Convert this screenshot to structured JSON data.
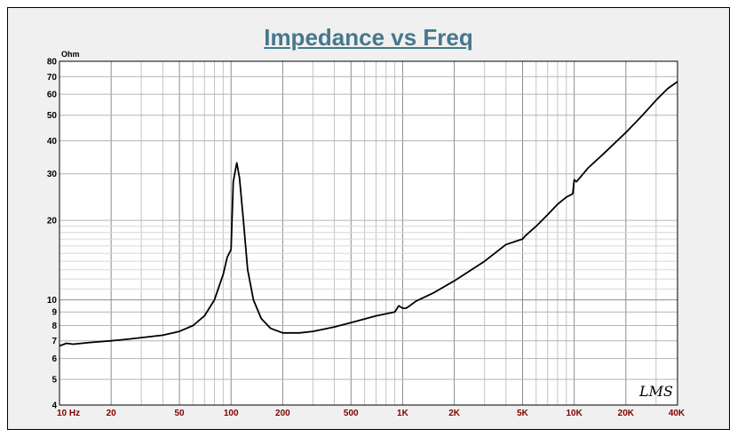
{
  "chart_data": {
    "type": "line",
    "title": "Impedance vs Freq",
    "xlabel": "",
    "ylabel": "",
    "y_unit": "Ohm",
    "x_scale": "log",
    "y_scale": "log",
    "xlim": [
      10,
      40000
    ],
    "ylim": [
      4,
      80
    ],
    "grid": true,
    "x_tick_labels": [
      {
        "value": 10,
        "label": "10  Hz"
      },
      {
        "value": 20,
        "label": "20"
      },
      {
        "value": 50,
        "label": "50"
      },
      {
        "value": 100,
        "label": "100"
      },
      {
        "value": 200,
        "label": "200"
      },
      {
        "value": 500,
        "label": "500"
      },
      {
        "value": 1000,
        "label": "1K"
      },
      {
        "value": 2000,
        "label": "2K"
      },
      {
        "value": 5000,
        "label": "5K"
      },
      {
        "value": 10000,
        "label": "10K"
      },
      {
        "value": 20000,
        "label": "20K"
      },
      {
        "value": 40000,
        "label": "40K"
      }
    ],
    "y_tick_labels": [
      {
        "value": 4,
        "label": "4"
      },
      {
        "value": 5,
        "label": "5"
      },
      {
        "value": 6,
        "label": "6"
      },
      {
        "value": 7,
        "label": "7"
      },
      {
        "value": 8,
        "label": "8"
      },
      {
        "value": 9,
        "label": "9"
      },
      {
        "value": 10,
        "label": "10"
      },
      {
        "value": 20,
        "label": "20"
      },
      {
        "value": 30,
        "label": "30"
      },
      {
        "value": 40,
        "label": "40"
      },
      {
        "value": 50,
        "label": "50"
      },
      {
        "value": 60,
        "label": "60"
      },
      {
        "value": 70,
        "label": "70"
      },
      {
        "value": 80,
        "label": "80"
      }
    ],
    "series": [
      {
        "color": "#000000",
        "x": [
          10,
          11,
          12,
          15,
          20,
          25,
          30,
          40,
          50,
          60,
          70,
          80,
          90,
          95,
          100,
          103,
          106,
          108,
          112,
          118,
          125,
          135,
          150,
          170,
          200,
          250,
          300,
          400,
          500,
          700,
          900,
          950,
          1000,
          1050,
          1100,
          1200,
          1500,
          2000,
          3000,
          4000,
          5000,
          5200,
          6000,
          7000,
          8000,
          9000,
          9800,
          10000,
          10300,
          10800,
          12000,
          15000,
          20000,
          25000,
          30000,
          35000,
          40000
        ],
        "y": [
          6.7,
          6.85,
          6.8,
          6.9,
          7.0,
          7.1,
          7.2,
          7.35,
          7.6,
          8.0,
          8.7,
          10.0,
          12.5,
          14.5,
          15.5,
          28.0,
          31.0,
          33.0,
          29.0,
          20.0,
          13.0,
          10.0,
          8.5,
          7.8,
          7.5,
          7.5,
          7.6,
          7.9,
          8.2,
          8.7,
          9.0,
          9.5,
          9.3,
          9.3,
          9.5,
          9.9,
          10.6,
          11.8,
          14.0,
          16.2,
          17.0,
          17.5,
          19.0,
          21.0,
          23.0,
          24.5,
          25.2,
          28.5,
          28.0,
          29.0,
          31.5,
          36.0,
          43.0,
          50.0,
          57.0,
          63.0,
          67.0
        ]
      }
    ]
  },
  "watermark": "LMS"
}
